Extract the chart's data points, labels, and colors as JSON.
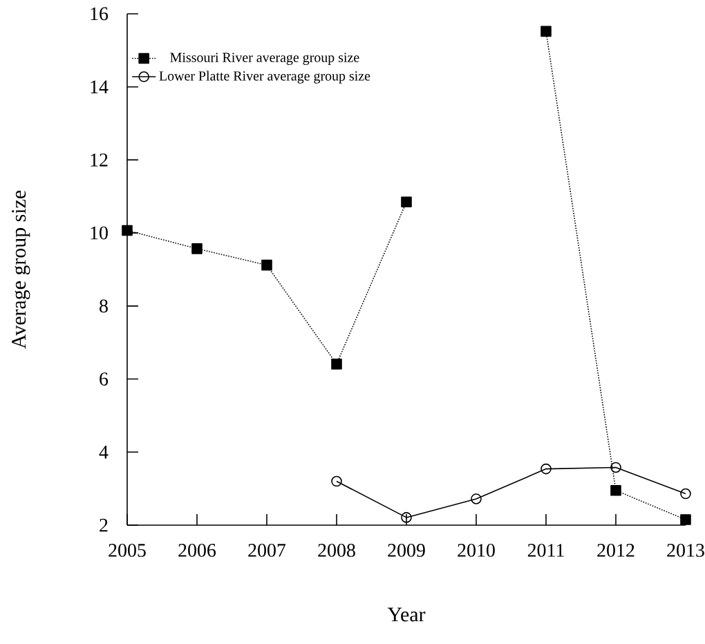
{
  "chart_data": {
    "type": "line",
    "xlabel": "Year",
    "ylabel": "Average group size",
    "x": [
      2005,
      2006,
      2007,
      2008,
      2009,
      2010,
      2011,
      2012,
      2013
    ],
    "series": [
      {
        "name": "Missouri River average group size",
        "color": "#000000",
        "marker": "square",
        "line_style": "dotted",
        "values": [
          10.07,
          9.57,
          9.12,
          6.41,
          10.85,
          null,
          15.52,
          2.95,
          2.15
        ]
      },
      {
        "name": "Lower Platte River average group size",
        "color": "#000000",
        "marker": "circle",
        "line_style": "solid",
        "values": [
          null,
          null,
          null,
          3.2,
          2.21,
          2.72,
          3.54,
          3.58,
          2.86
        ]
      }
    ],
    "xlim": [
      2005,
      2013
    ],
    "xticks": [
      2005,
      2006,
      2007,
      2008,
      2009,
      2010,
      2011,
      2012,
      2013
    ],
    "ylim": [
      2,
      16
    ],
    "yticks": [
      2,
      4,
      6,
      8,
      10,
      12,
      14,
      16
    ],
    "legend": "top left"
  }
}
